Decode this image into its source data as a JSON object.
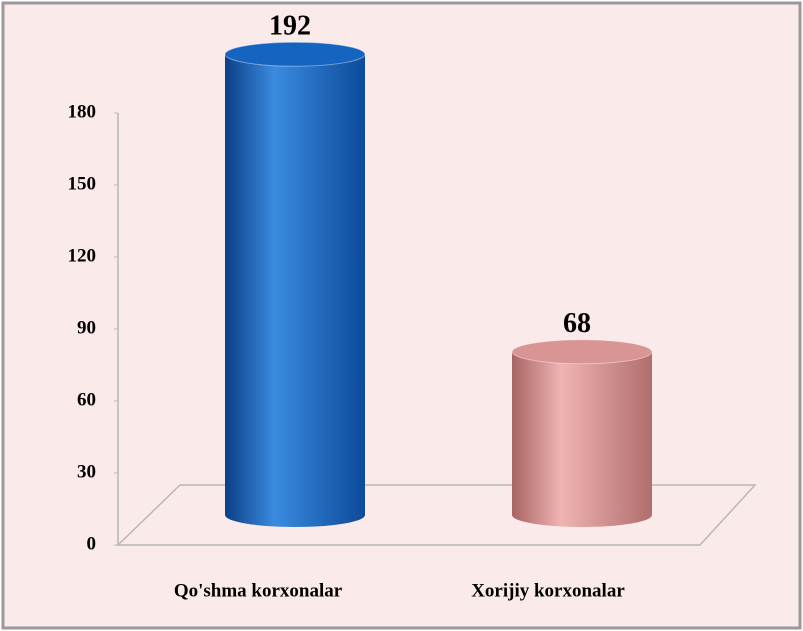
{
  "chart_data": {
    "type": "bar3d",
    "categories": [
      "Qo'shma korxonalar",
      "Xorijiy korxonalar"
    ],
    "series": [
      {
        "values": [
          192,
          68
        ],
        "colors": [
          "#1565c0",
          "#d99594"
        ]
      }
    ],
    "ylim": [
      0,
      180
    ],
    "yticks": [
      0,
      30,
      60,
      90,
      120,
      150,
      180
    ]
  }
}
